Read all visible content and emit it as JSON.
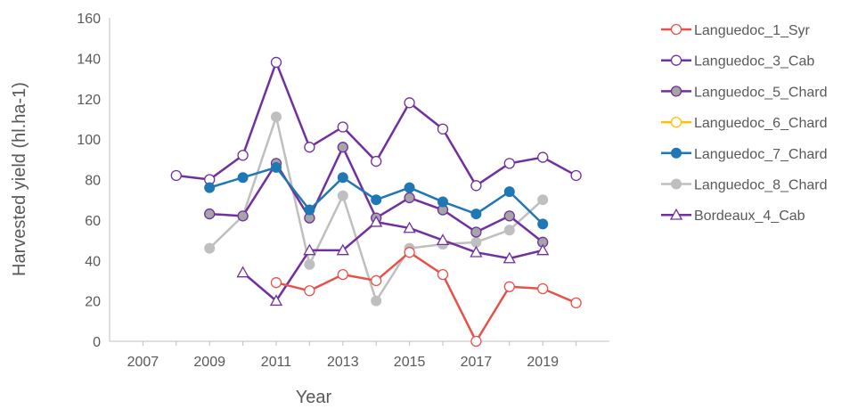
{
  "chart_data": {
    "type": "line",
    "title": "",
    "xlabel": "Year",
    "ylabel": "Harvested yield (hl.ha-1)",
    "xlim": [
      2006,
      2021
    ],
    "ylim": [
      0,
      160
    ],
    "x_ticks": [
      "2007",
      "2009",
      "2011",
      "2013",
      "2015",
      "2017",
      "2019"
    ],
    "y_ticks": [
      "0",
      "20",
      "40",
      "60",
      "80",
      "100",
      "120",
      "140",
      "160"
    ],
    "grid": false,
    "legend_position": "right",
    "series": [
      {
        "name": "Languedoc_1_Syr",
        "color": "#e8514a",
        "marker": "circle-open",
        "x": [
          2011,
          2012,
          2013,
          2014,
          2015,
          2016,
          2017,
          2018,
          2019,
          2020
        ],
        "y": [
          29,
          25,
          33,
          30,
          44,
          33,
          0,
          27,
          26,
          19
        ]
      },
      {
        "name": "Languedoc_3_Cab",
        "color": "#7030a0",
        "marker": "circle-open",
        "x": [
          2008,
          2009,
          2010,
          2011,
          2012,
          2013,
          2014,
          2015,
          2016,
          2017,
          2018,
          2019,
          2020
        ],
        "y": [
          82,
          80,
          92,
          138,
          96,
          106,
          89,
          118,
          105,
          77,
          88,
          91,
          82
        ]
      },
      {
        "name": "Languedoc_5_Chard",
        "color": "#7030a0",
        "marker": "circle-filled-gray",
        "x": [
          2009,
          2010,
          2011,
          2012,
          2013,
          2014,
          2015,
          2016,
          2017,
          2018,
          2019
        ],
        "y": [
          63,
          62,
          88,
          61,
          96,
          61,
          71,
          65,
          54,
          62,
          49
        ]
      },
      {
        "name": "Languedoc_6_Chard",
        "color": "#ffc000",
        "marker": "circle-open",
        "x": [],
        "y": []
      },
      {
        "name": "Languedoc_7_Chard",
        "color": "#1f77b4",
        "marker": "circle-filled",
        "x": [
          2009,
          2010,
          2011,
          2012,
          2013,
          2014,
          2015,
          2016,
          2017,
          2018,
          2019
        ],
        "y": [
          76,
          81,
          86,
          65,
          81,
          70,
          76,
          69,
          63,
          74,
          58
        ]
      },
      {
        "name": "Languedoc_8_Chard",
        "color": "#bfbfbf",
        "marker": "circle-filled",
        "x": [
          2009,
          2010,
          2011,
          2012,
          2013,
          2014,
          2015,
          2016,
          2017,
          2018,
          2019
        ],
        "y": [
          46,
          62,
          111,
          38,
          72,
          20,
          46,
          48,
          49,
          55,
          70
        ]
      },
      {
        "name": "Bordeaux_4_Cab",
        "color": "#7030a0",
        "marker": "triangle-open",
        "x": [
          2010,
          2011,
          2012,
          2013,
          2014,
          2015,
          2016,
          2017,
          2018,
          2019
        ],
        "y": [
          34,
          20,
          45,
          45,
          59,
          56,
          50,
          44,
          41,
          45
        ]
      }
    ]
  }
}
